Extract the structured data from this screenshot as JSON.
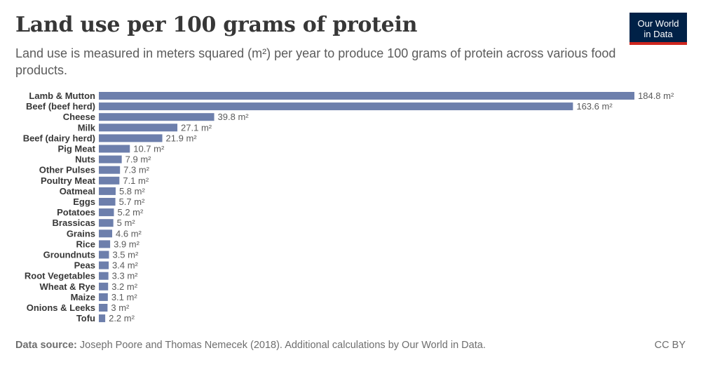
{
  "header": {
    "title": "Land use per 100 grams of protein",
    "subtitle": "Land use is measured in meters squared (m²) per year to produce 100 grams of protein across various food products."
  },
  "logo": {
    "line1": "Our World",
    "line2": "in Data"
  },
  "footer": {
    "source_label": "Data source:",
    "source_text": "Joseph Poore and Thomas Nemecek (2018). Additional calculations by Our World in Data.",
    "license": "CC BY"
  },
  "colors": {
    "bar": "#6d7fac",
    "label": "#373737",
    "value": "#5b5b5b"
  },
  "chart_data": {
    "type": "bar",
    "orientation": "horizontal",
    "title": "Land use per 100 grams of protein",
    "unit": "m²",
    "categories": [
      "Lamb & Mutton",
      "Beef (beef herd)",
      "Cheese",
      "Milk",
      "Beef (dairy herd)",
      "Pig Meat",
      "Nuts",
      "Other Pulses",
      "Poultry Meat",
      "Oatmeal",
      "Eggs",
      "Potatoes",
      "Brassicas",
      "Grains",
      "Rice",
      "Groundnuts",
      "Peas",
      "Root Vegetables",
      "Wheat & Rye",
      "Maize",
      "Onions & Leeks",
      "Tofu"
    ],
    "values": [
      184.8,
      163.6,
      39.8,
      27.1,
      21.9,
      10.7,
      7.9,
      7.3,
      7.1,
      5.8,
      5.7,
      5.2,
      5,
      4.6,
      3.9,
      3.5,
      3.4,
      3.3,
      3.2,
      3.1,
      3,
      2.2
    ],
    "value_labels": [
      "184.8 m²",
      "163.6 m²",
      "39.8 m²",
      "27.1 m²",
      "21.9 m²",
      "10.7 m²",
      "7.9 m²",
      "7.3 m²",
      "7.1 m²",
      "5.8 m²",
      "5.7 m²",
      "5.2 m²",
      "5 m²",
      "4.6 m²",
      "3.9 m²",
      "3.5 m²",
      "3.4 m²",
      "3.3 m²",
      "3.2 m²",
      "3.1 m²",
      "3 m²",
      "2.2 m²"
    ],
    "xlim": [
      0,
      184.8
    ],
    "grid": false,
    "legend": "none"
  }
}
